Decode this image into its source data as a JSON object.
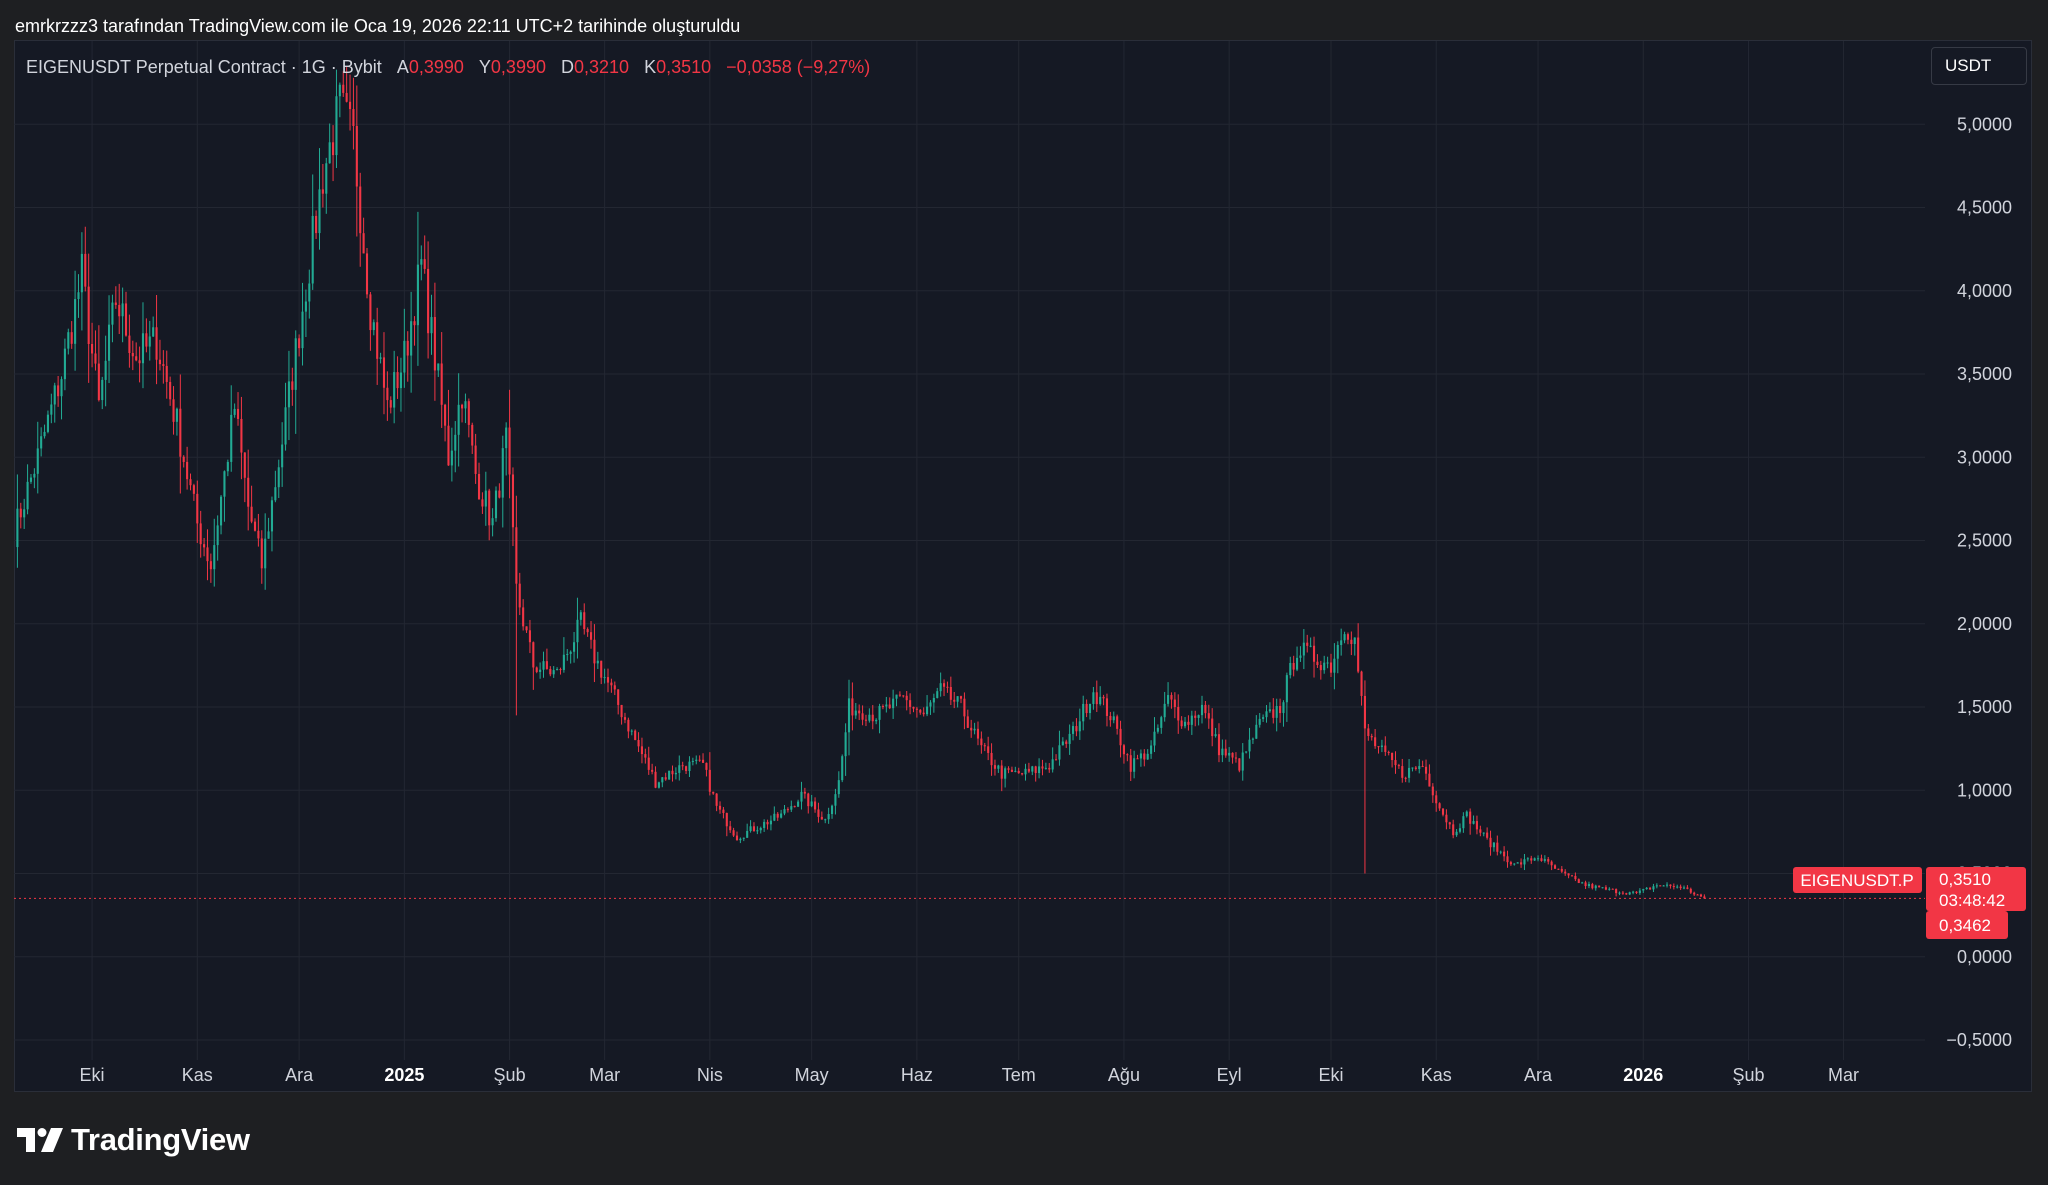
{
  "header": {
    "attribution": "emrkrzzz3 tarafından TradingView.com ile Oca 19, 2026 22:11 UTC+2 tarihinde oluşturuldu"
  },
  "legend": {
    "symbol": "EIGENUSDT Perpetual Contract · 1G · Bybit",
    "open_label": "A",
    "open": "0,3990",
    "high_label": "Y",
    "high": "0,3990",
    "low_label": "D",
    "low": "0,3210",
    "close_label": "K",
    "close": "0,3510",
    "change": "−0,0358 (−9,27%)"
  },
  "currency_button": "USDT",
  "price_labels": {
    "symbol_tag": "EIGENUSDT.P",
    "last_price": "0,3510",
    "countdown": "03:48:42",
    "secondary_price": "0,3462"
  },
  "footer": {
    "brand": "TradingView"
  },
  "colors": {
    "up": "#22ab94",
    "down": "#f23645",
    "background": "#151924",
    "grid": "#232732",
    "text": "#d1d4dc"
  },
  "chart_data": {
    "type": "candlestick",
    "interval": "1D",
    "y_ticks": [
      "5,0000",
      "4,5000",
      "4,0000",
      "3,5000",
      "3,0000",
      "2,5000",
      "2,0000",
      "1,5000",
      "1,0000",
      "0,5000",
      "0,0000",
      "−0,5000"
    ],
    "y_tick_values": [
      5.0,
      4.5,
      4.0,
      3.5,
      3.0,
      2.5,
      2.0,
      1.5,
      1.0,
      0.5,
      0.0,
      -0.5
    ],
    "ylim": [
      -0.62,
      5.5
    ],
    "x_ticks": [
      {
        "label": "Eki",
        "date": "2024-10-01",
        "bold": false
      },
      {
        "label": "Kas",
        "date": "2024-11-01",
        "bold": false
      },
      {
        "label": "Ara",
        "date": "2024-12-01",
        "bold": false
      },
      {
        "label": "2025",
        "date": "2025-01-01",
        "bold": true
      },
      {
        "label": "Şub",
        "date": "2025-02-01",
        "bold": false
      },
      {
        "label": "Mar",
        "date": "2025-03-01",
        "bold": false
      },
      {
        "label": "Nis",
        "date": "2025-04-01",
        "bold": false
      },
      {
        "label": "May",
        "date": "2025-05-01",
        "bold": false
      },
      {
        "label": "Haz",
        "date": "2025-06-01",
        "bold": false
      },
      {
        "label": "Tem",
        "date": "2025-07-01",
        "bold": false
      },
      {
        "label": "Ağu",
        "date": "2025-08-01",
        "bold": false
      },
      {
        "label": "Eyl",
        "date": "2025-09-01",
        "bold": false
      },
      {
        "label": "Eki",
        "date": "2025-10-01",
        "bold": false
      },
      {
        "label": "Kas",
        "date": "2025-11-01",
        "bold": false
      },
      {
        "label": "Ara",
        "date": "2025-12-01",
        "bold": false
      },
      {
        "label": "2026",
        "date": "2026-01-01",
        "bold": true
      },
      {
        "label": "Şub",
        "date": "2026-02-01",
        "bold": false
      },
      {
        "label": "Mar",
        "date": "2026-03-01",
        "bold": false
      }
    ],
    "x_range": [
      "2024-09-08",
      "2026-03-25"
    ],
    "price_line": 0.351,
    "close_path": [
      {
        "date": "2024-09-08",
        "close": 2.55
      },
      {
        "date": "2024-09-15",
        "close": 3.0
      },
      {
        "date": "2024-09-22",
        "close": 3.5
      },
      {
        "date": "2024-09-28",
        "close": 4.1
      },
      {
        "date": "2024-10-03",
        "close": 3.3
      },
      {
        "date": "2024-10-08",
        "close": 3.95
      },
      {
        "date": "2024-10-14",
        "close": 3.6
      },
      {
        "date": "2024-10-20",
        "close": 3.7
      },
      {
        "date": "2024-10-26",
        "close": 3.2
      },
      {
        "date": "2024-11-01",
        "close": 2.6
      },
      {
        "date": "2024-11-05",
        "close": 2.35
      },
      {
        "date": "2024-11-12",
        "close": 3.3
      },
      {
        "date": "2024-11-16",
        "close": 2.7
      },
      {
        "date": "2024-11-20",
        "close": 2.35
      },
      {
        "date": "2024-11-26",
        "close": 3.1
      },
      {
        "date": "2024-12-02",
        "close": 3.9
      },
      {
        "date": "2024-12-08",
        "close": 4.7
      },
      {
        "date": "2024-12-13",
        "close": 5.1
      },
      {
        "date": "2024-12-17",
        "close": 4.9
      },
      {
        "date": "2024-12-22",
        "close": 3.9
      },
      {
        "date": "2024-12-27",
        "close": 3.3
      },
      {
        "date": "2025-01-01",
        "close": 3.6
      },
      {
        "date": "2025-01-06",
        "close": 4.15
      },
      {
        "date": "2025-01-10",
        "close": 3.6
      },
      {
        "date": "2025-01-14",
        "close": 3.0
      },
      {
        "date": "2025-01-18",
        "close": 3.4
      },
      {
        "date": "2025-01-22",
        "close": 2.9
      },
      {
        "date": "2025-01-27",
        "close": 2.6
      },
      {
        "date": "2025-01-31",
        "close": 3.1
      },
      {
        "date": "2025-02-03",
        "close": 2.2
      },
      {
        "date": "2025-02-08",
        "close": 1.75
      },
      {
        "date": "2025-02-15",
        "close": 1.7
      },
      {
        "date": "2025-02-22",
        "close": 2.0
      },
      {
        "date": "2025-02-26",
        "close": 1.8
      },
      {
        "date": "2025-03-03",
        "close": 1.6
      },
      {
        "date": "2025-03-10",
        "close": 1.3
      },
      {
        "date": "2025-03-16",
        "close": 1.05
      },
      {
        "date": "2025-03-24",
        "close": 1.15
      },
      {
        "date": "2025-03-30",
        "close": 1.15
      },
      {
        "date": "2025-04-03",
        "close": 0.9
      },
      {
        "date": "2025-04-09",
        "close": 0.72
      },
      {
        "date": "2025-04-15",
        "close": 0.78
      },
      {
        "date": "2025-04-22",
        "close": 0.85
      },
      {
        "date": "2025-04-28",
        "close": 0.97
      },
      {
        "date": "2025-05-05",
        "close": 0.82
      },
      {
        "date": "2025-05-09",
        "close": 1.05
      },
      {
        "date": "2025-05-12",
        "close": 1.5
      },
      {
        "date": "2025-05-20",
        "close": 1.45
      },
      {
        "date": "2025-05-28",
        "close": 1.55
      },
      {
        "date": "2025-06-03",
        "close": 1.45
      },
      {
        "date": "2025-06-08",
        "close": 1.6
      },
      {
        "date": "2025-06-14",
        "close": 1.5
      },
      {
        "date": "2025-06-20",
        "close": 1.25
      },
      {
        "date": "2025-06-26",
        "close": 1.1
      },
      {
        "date": "2025-07-03",
        "close": 1.1
      },
      {
        "date": "2025-07-10",
        "close": 1.15
      },
      {
        "date": "2025-07-17",
        "close": 1.35
      },
      {
        "date": "2025-07-23",
        "close": 1.6
      },
      {
        "date": "2025-07-28",
        "close": 1.45
      },
      {
        "date": "2025-08-03",
        "close": 1.15
      },
      {
        "date": "2025-08-09",
        "close": 1.25
      },
      {
        "date": "2025-08-14",
        "close": 1.55
      },
      {
        "date": "2025-08-19",
        "close": 1.4
      },
      {
        "date": "2025-08-24",
        "close": 1.5
      },
      {
        "date": "2025-08-29",
        "close": 1.25
      },
      {
        "date": "2025-09-04",
        "close": 1.15
      },
      {
        "date": "2025-09-10",
        "close": 1.4
      },
      {
        "date": "2025-09-16",
        "close": 1.5
      },
      {
        "date": "2025-09-21",
        "close": 1.85
      },
      {
        "date": "2025-09-26",
        "close": 1.8
      },
      {
        "date": "2025-10-01",
        "close": 1.75
      },
      {
        "date": "2025-10-05",
        "close": 2.0
      },
      {
        "date": "2025-10-08",
        "close": 1.9
      },
      {
        "date": "2025-10-11",
        "close": 1.35
      },
      {
        "date": "2025-10-15",
        "close": 1.25
      },
      {
        "date": "2025-10-22",
        "close": 1.1
      },
      {
        "date": "2025-10-28",
        "close": 1.15
      },
      {
        "date": "2025-11-02",
        "close": 0.9
      },
      {
        "date": "2025-11-06",
        "close": 0.75
      },
      {
        "date": "2025-11-10",
        "close": 0.85
      },
      {
        "date": "2025-11-16",
        "close": 0.7
      },
      {
        "date": "2025-11-24",
        "close": 0.55
      },
      {
        "date": "2025-12-01",
        "close": 0.6
      },
      {
        "date": "2025-12-08",
        "close": 0.5
      },
      {
        "date": "2025-12-15",
        "close": 0.43
      },
      {
        "date": "2025-12-22",
        "close": 0.4
      },
      {
        "date": "2025-12-30",
        "close": 0.38
      },
      {
        "date": "2026-01-05",
        "close": 0.43
      },
      {
        "date": "2026-01-12",
        "close": 0.42
      },
      {
        "date": "2026-01-19",
        "close": 0.351
      }
    ],
    "wick_spikes": [
      {
        "date": "2025-02-03",
        "low": 1.45
      },
      {
        "date": "2025-10-11",
        "low": 0.5
      }
    ]
  }
}
